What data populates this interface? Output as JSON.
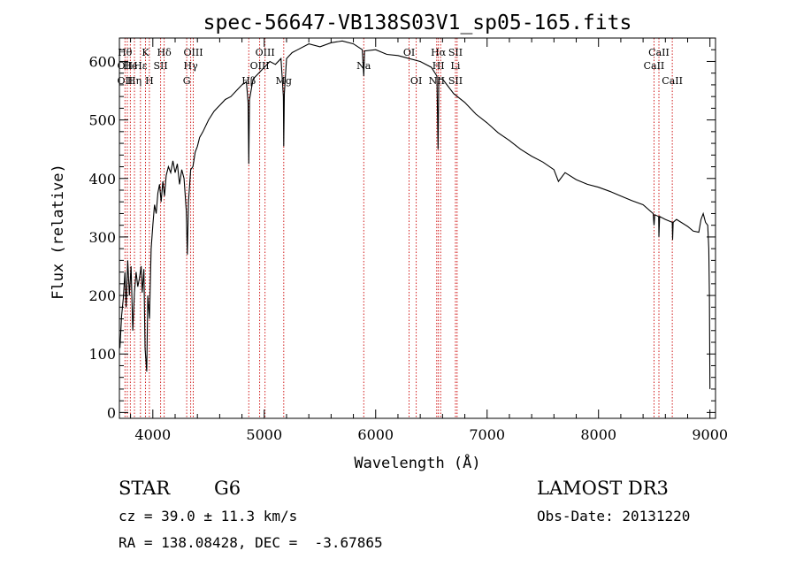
{
  "chart_data": {
    "type": "line",
    "title": "spec-56647-VB138S03V1_sp05-165.fits",
    "xlabel": "Wavelength (Å)",
    "ylabel": "Flux (relative)",
    "xlim": [
      3700,
      9050
    ],
    "ylim": [
      -10,
      640
    ],
    "xticks": [
      4000,
      5000,
      6000,
      7000,
      8000,
      9000
    ],
    "yticks": [
      0,
      100,
      200,
      300,
      400,
      500,
      600
    ],
    "line_color": "#000000",
    "marker_color": "#cc0000",
    "series": [
      {
        "name": "flux",
        "points": [
          [
            3705,
            110
          ],
          [
            3720,
            165
          ],
          [
            3735,
            195
          ],
          [
            3750,
            240
          ],
          [
            3760,
            180
          ],
          [
            3775,
            260
          ],
          [
            3790,
            200
          ],
          [
            3805,
            250
          ],
          [
            3820,
            140
          ],
          [
            3835,
            205
          ],
          [
            3850,
            240
          ],
          [
            3865,
            215
          ],
          [
            3880,
            230
          ],
          [
            3895,
            250
          ],
          [
            3905,
            205
          ],
          [
            3920,
            245
          ],
          [
            3930,
            110
          ],
          [
            3945,
            70
          ],
          [
            3955,
            200
          ],
          [
            3970,
            160
          ],
          [
            3985,
            280
          ],
          [
            4000,
            320
          ],
          [
            4015,
            355
          ],
          [
            4030,
            340
          ],
          [
            4045,
            375
          ],
          [
            4060,
            390
          ],
          [
            4075,
            360
          ],
          [
            4090,
            395
          ],
          [
            4105,
            370
          ],
          [
            4120,
            405
          ],
          [
            4140,
            420
          ],
          [
            4160,
            410
          ],
          [
            4180,
            430
          ],
          [
            4200,
            410
          ],
          [
            4220,
            425
          ],
          [
            4240,
            390
          ],
          [
            4260,
            415
          ],
          [
            4280,
            400
          ],
          [
            4300,
            345
          ],
          [
            4310,
            270
          ],
          [
            4320,
            360
          ],
          [
            4340,
            415
          ],
          [
            4360,
            420
          ],
          [
            4380,
            445
          ],
          [
            4400,
            455
          ],
          [
            4420,
            470
          ],
          [
            4450,
            480
          ],
          [
            4500,
            500
          ],
          [
            4550,
            515
          ],
          [
            4600,
            525
          ],
          [
            4650,
            535
          ],
          [
            4700,
            540
          ],
          [
            4750,
            550
          ],
          [
            4800,
            560
          ],
          [
            4840,
            565
          ],
          [
            4855,
            530
          ],
          [
            4861,
            425
          ],
          [
            4868,
            535
          ],
          [
            4900,
            570
          ],
          [
            4950,
            580
          ],
          [
            5000,
            590
          ],
          [
            5050,
            600
          ],
          [
            5100,
            595
          ],
          [
            5150,
            605
          ],
          [
            5172,
            540
          ],
          [
            5175,
            455
          ],
          [
            5180,
            545
          ],
          [
            5200,
            605
          ],
          [
            5250,
            615
          ],
          [
            5300,
            620
          ],
          [
            5400,
            630
          ],
          [
            5500,
            625
          ],
          [
            5600,
            632
          ],
          [
            5700,
            635
          ],
          [
            5800,
            630
          ],
          [
            5880,
            620
          ],
          [
            5893,
            575
          ],
          [
            5900,
            618
          ],
          [
            6000,
            620
          ],
          [
            6100,
            612
          ],
          [
            6200,
            610
          ],
          [
            6300,
            605
          ],
          [
            6400,
            600
          ],
          [
            6500,
            590
          ],
          [
            6550,
            575
          ],
          [
            6560,
            450
          ],
          [
            6566,
            570
          ],
          [
            6600,
            570
          ],
          [
            6700,
            545
          ],
          [
            6800,
            530
          ],
          [
            6900,
            510
          ],
          [
            7000,
            495
          ],
          [
            7100,
            478
          ],
          [
            7200,
            465
          ],
          [
            7300,
            450
          ],
          [
            7400,
            438
          ],
          [
            7500,
            428
          ],
          [
            7600,
            415
          ],
          [
            7640,
            395
          ],
          [
            7700,
            410
          ],
          [
            7800,
            398
          ],
          [
            7900,
            390
          ],
          [
            8000,
            385
          ],
          [
            8100,
            378
          ],
          [
            8200,
            370
          ],
          [
            8300,
            362
          ],
          [
            8400,
            355
          ],
          [
            8490,
            340
          ],
          [
            8498,
            320
          ],
          [
            8505,
            338
          ],
          [
            8540,
            335
          ],
          [
            8542,
            300
          ],
          [
            8548,
            335
          ],
          [
            8600,
            330
          ],
          [
            8662,
            325
          ],
          [
            8665,
            295
          ],
          [
            8670,
            325
          ],
          [
            8700,
            330
          ],
          [
            8800,
            318
          ],
          [
            8850,
            310
          ],
          [
            8900,
            308
          ],
          [
            8920,
            330
          ],
          [
            8940,
            340
          ],
          [
            8960,
            325
          ],
          [
            8980,
            320
          ],
          [
            8990,
            280
          ],
          [
            8995,
            200
          ],
          [
            9000,
            40
          ]
        ]
      }
    ],
    "line_markers": [
      {
        "wavelength": 3750,
        "labels": [
          "Hθ",
          "OII",
          "OII"
        ]
      },
      {
        "wavelength": 3771,
        "labels": []
      },
      {
        "wavelength": 3798,
        "labels": [
          "",
          "He"
        ]
      },
      {
        "wavelength": 3835,
        "labels": [
          "",
          "",
          "Hη"
        ]
      },
      {
        "wavelength": 3889,
        "labels": [
          "",
          "Hε"
        ]
      },
      {
        "wavelength": 3934,
        "labels": [
          "K"
        ]
      },
      {
        "wavelength": 3969,
        "labels": [
          "",
          "",
          "H"
        ]
      },
      {
        "wavelength": 4070,
        "labels": [
          "",
          "SII"
        ]
      },
      {
        "wavelength": 4102,
        "labels": [
          "Hδ"
        ]
      },
      {
        "wavelength": 4304,
        "labels": [
          "",
          "",
          "G"
        ]
      },
      {
        "wavelength": 4340,
        "labels": [
          "",
          "Hγ"
        ]
      },
      {
        "wavelength": 4363,
        "labels": [
          "OIII"
        ]
      },
      {
        "wavelength": 4861,
        "labels": [
          "",
          "",
          "Hβ"
        ]
      },
      {
        "wavelength": 4959,
        "labels": [
          "",
          "OIII"
        ]
      },
      {
        "wavelength": 5007,
        "labels": [
          "OIII"
        ]
      },
      {
        "wavelength": 5175,
        "labels": [
          "",
          "",
          "Mg"
        ]
      },
      {
        "wavelength": 5893,
        "labels": [
          "",
          "Na"
        ]
      },
      {
        "wavelength": 6300,
        "labels": [
          "OI"
        ]
      },
      {
        "wavelength": 6364,
        "labels": [
          "",
          "",
          "OI"
        ]
      },
      {
        "wavelength": 6548,
        "labels": [
          "",
          "",
          "NII"
        ]
      },
      {
        "wavelength": 6563,
        "labels": [
          "Hα",
          "HI"
        ]
      },
      {
        "wavelength": 6583,
        "labels": []
      },
      {
        "wavelength": 6716,
        "labels": [
          "SII",
          "Li",
          "SII"
        ]
      },
      {
        "wavelength": 6731,
        "labels": []
      },
      {
        "wavelength": 8498,
        "labels": [
          "",
          "CaII"
        ]
      },
      {
        "wavelength": 8542,
        "labels": [
          "CaII"
        ]
      },
      {
        "wavelength": 8662,
        "labels": [
          "",
          "",
          "CaII"
        ]
      }
    ]
  },
  "info": {
    "class_label": "STAR",
    "subclass": "G6",
    "survey": "LAMOST DR3",
    "cz": "cz = 39.0 ± 11.3 km/s",
    "obs_date": "Obs-Date: 20131220",
    "coords": "RA = 138.08428, DEC =  -3.67865"
  }
}
